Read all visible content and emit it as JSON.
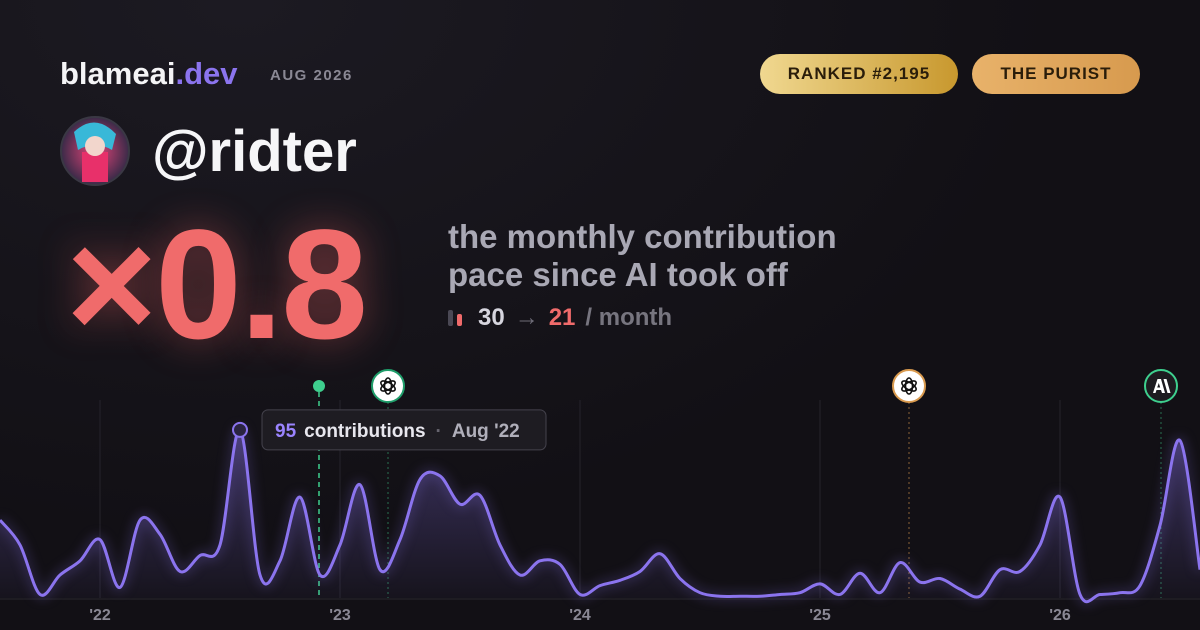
{
  "header": {
    "brand": "blameai",
    "brand_suffix": ".dev",
    "date": "AUG 2026",
    "badges": [
      "RANKED #2,195",
      "THE PURIST"
    ]
  },
  "profile": {
    "username": "@ridter"
  },
  "headline": {
    "multiplier": "×0.8",
    "description": [
      "the monthly contribution",
      "pace since AI took off"
    ],
    "before": 30,
    "arrow": "→",
    "after": 21,
    "unit": "/ month"
  },
  "chart_data": {
    "type": "line",
    "color": "#8b74ee",
    "area": true,
    "categories": [
      null,
      null,
      null,
      null,
      null,
      "'22",
      null,
      null,
      null,
      null,
      null,
      null,
      null,
      null,
      null,
      null,
      null,
      "'23",
      null,
      null,
      null,
      null,
      null,
      null,
      null,
      null,
      null,
      null,
      null,
      "'24",
      null,
      null,
      null,
      null,
      null,
      null,
      null,
      null,
      null,
      null,
      null,
      "'25",
      null,
      null,
      null,
      null,
      null,
      null,
      null,
      null,
      null,
      null,
      null,
      "'26",
      null,
      null,
      null,
      null,
      null,
      null,
      null
    ],
    "values": [
      44,
      30,
      2,
      13,
      21,
      33,
      6,
      44,
      36,
      15,
      24,
      30,
      95,
      13,
      21,
      57,
      13,
      30,
      64,
      16,
      33,
      67,
      69,
      53,
      58,
      30,
      13,
      21,
      19,
      2,
      7,
      10,
      15,
      25,
      11,
      3,
      1,
      1,
      1,
      2,
      3,
      8,
      2,
      14,
      3,
      20,
      9,
      11,
      5,
      1,
      16,
      15,
      30,
      57,
      2,
      2,
      3,
      7,
      41,
      89,
      16
    ],
    "ylim": [
      0,
      100
    ],
    "tooltip": {
      "value": 95,
      "label": "contributions",
      "date": "Aug '22"
    }
  }
}
